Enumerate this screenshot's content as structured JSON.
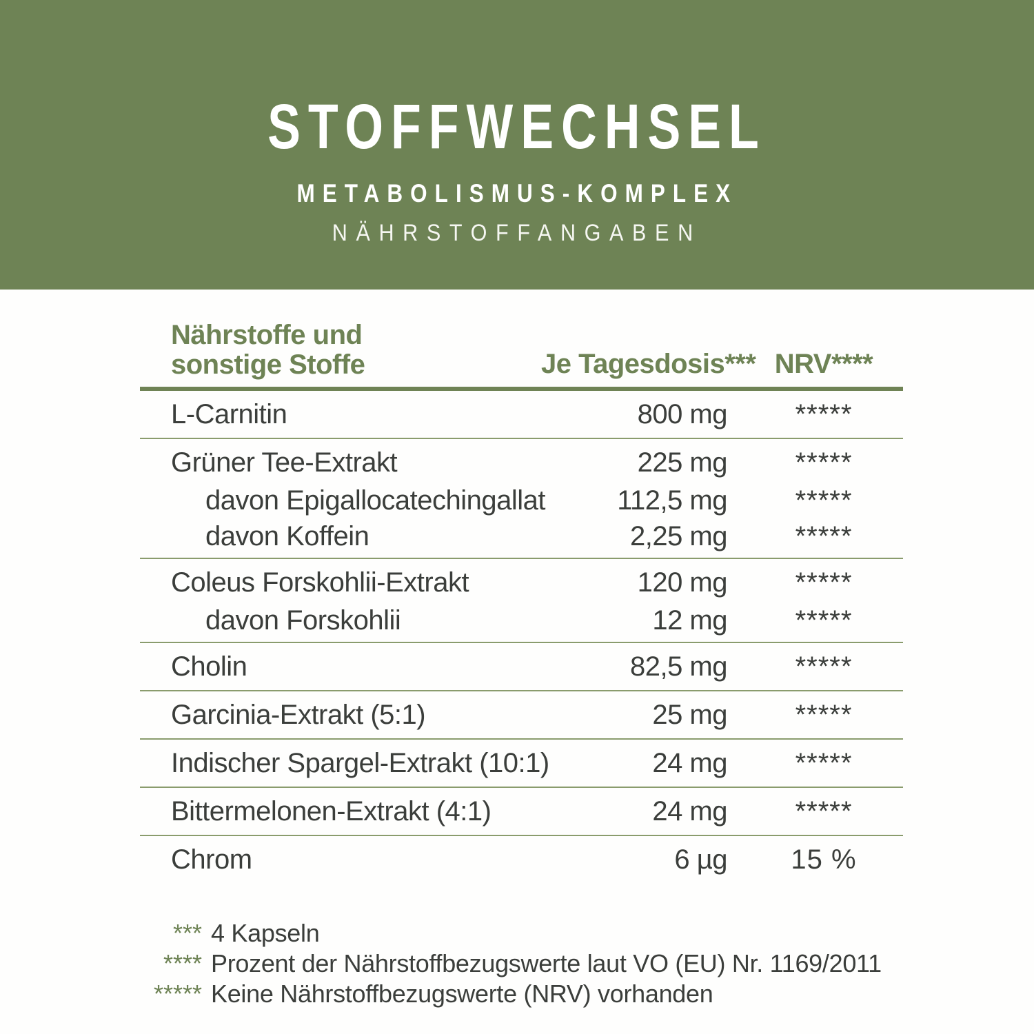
{
  "header": {
    "title": "STOFFWECHSEL",
    "subtitle": "METABOLISMUS-KOMPLEX",
    "section": "NÄHRSTOFFANGABEN"
  },
  "table": {
    "col_nutrient_line1": "Nährstoffe und",
    "col_nutrient_line2": "sonstige Stoffe",
    "col_dose": "Je Tagesdosis***",
    "col_nrv": "NRV****",
    "rows": [
      {
        "name": "L-Carnitin",
        "dose": "800 mg",
        "nrv": "*****"
      },
      {
        "name": "Grüner Tee-Extrakt",
        "dose": "225 mg",
        "nrv": "*****"
      },
      {
        "name": "davon Epigallocatechingallat",
        "dose": "112,5 mg",
        "nrv": "*****"
      },
      {
        "name": "davon Koffein",
        "dose": "2,25 mg",
        "nrv": "*****"
      },
      {
        "name": "Coleus Forskohlii-Extrakt",
        "dose": "120 mg",
        "nrv": "*****"
      },
      {
        "name": "davon Forskohlii",
        "dose": "12 mg",
        "nrv": "*****"
      },
      {
        "name": "Cholin",
        "dose": "82,5 mg",
        "nrv": "*****"
      },
      {
        "name": "Garcinia-Extrakt (5:1)",
        "dose": "25 mg",
        "nrv": "*****"
      },
      {
        "name": "Indischer Spargel-Extrakt (10:1)",
        "dose": "24 mg",
        "nrv": "*****"
      },
      {
        "name": "Bittermelonen-Extrakt (4:1)",
        "dose": "24 mg",
        "nrv": "*****"
      },
      {
        "name": "Chrom",
        "dose": "6 µg",
        "nrv": "15 %"
      }
    ]
  },
  "footnotes": [
    {
      "symbol": "***",
      "text": "4 Kapseln"
    },
    {
      "symbol": "****",
      "text": "Prozent der Nährstoffbezugswerte laut VO (EU) Nr. 1169/2011"
    },
    {
      "symbol": "*****",
      "text": "Keine Nährstoffbezugswerte (NRV) vorhanden"
    }
  ],
  "colors": {
    "band_green": "#6e8355",
    "rule_green": "#6f8355",
    "separator_green": "#8a9c6d",
    "text_dark": "#3b3e3b"
  }
}
